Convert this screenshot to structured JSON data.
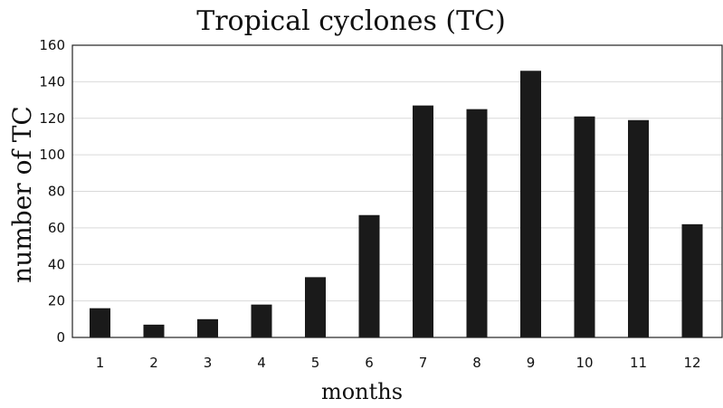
{
  "chart_data": {
    "type": "bar",
    "title": "Tropical cyclones (TC)",
    "xlabel": "months",
    "ylabel": "number of TC",
    "categories": [
      "1",
      "2",
      "3",
      "4",
      "5",
      "6",
      "7",
      "8",
      "9",
      "10",
      "11",
      "12"
    ],
    "values": [
      16,
      7,
      10,
      18,
      33,
      67,
      127,
      125,
      146,
      121,
      119,
      62
    ],
    "ylim": [
      0,
      160
    ],
    "yticks": [
      0,
      20,
      40,
      60,
      80,
      100,
      120,
      140,
      160
    ],
    "grid": true,
    "legend": "none",
    "bar_color": "#1a1a1a"
  }
}
